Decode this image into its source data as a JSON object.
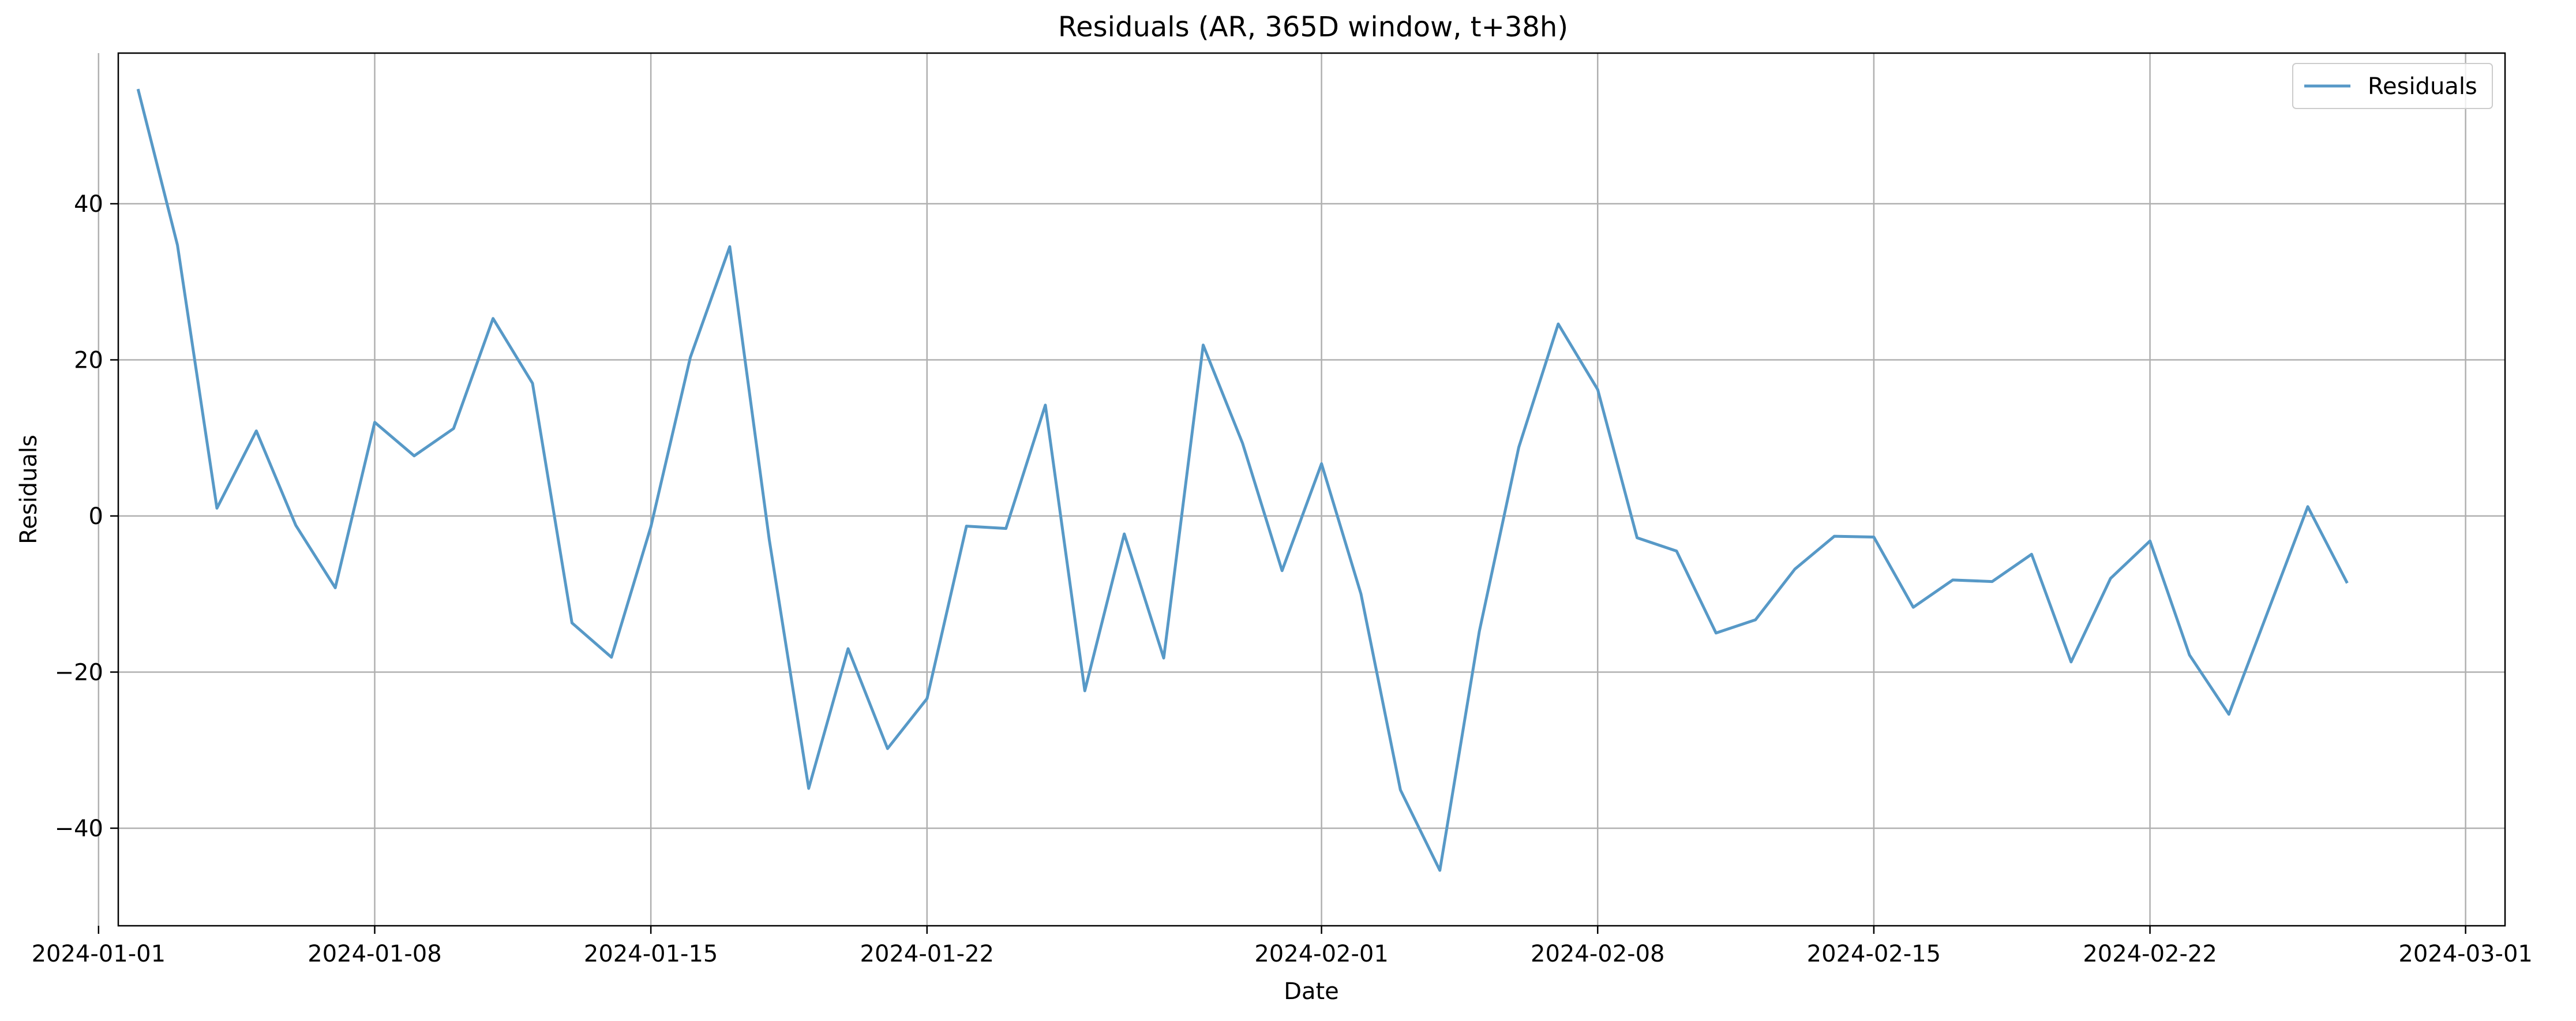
{
  "chart_data": {
    "type": "line",
    "title": "Residuals (AR, 365D window, t+38h)",
    "xlabel": "Date",
    "ylabel": "Residuals",
    "xlim": [
      "2024-01-01",
      "2024-03-01"
    ],
    "ylim": [
      -50,
      60
    ],
    "x_ticks": [
      "2024-01-01",
      "2024-01-08",
      "2024-01-15",
      "2024-01-22",
      "2024-02-01",
      "2024-02-08",
      "2024-02-15",
      "2024-02-22",
      "2024-03-01"
    ],
    "y_ticks": [
      -40,
      -20,
      0,
      20,
      40
    ],
    "grid": true,
    "legend_position": "top-right",
    "colors": {
      "series": "#5799c7",
      "grid": "#b0b0b0",
      "axes": "#000000"
    },
    "series": [
      {
        "name": "Residuals",
        "x": [
          "2024-01-02",
          "2024-01-03",
          "2024-01-04",
          "2024-01-05",
          "2024-01-06",
          "2024-01-07",
          "2024-01-08",
          "2024-01-09",
          "2024-01-10",
          "2024-01-11",
          "2024-01-12",
          "2024-01-13",
          "2024-01-14",
          "2024-01-15",
          "2024-01-16",
          "2024-01-17",
          "2024-01-18",
          "2024-01-19",
          "2024-01-20",
          "2024-01-21",
          "2024-01-22",
          "2024-01-23",
          "2024-01-24",
          "2024-01-25",
          "2024-01-26",
          "2024-01-27",
          "2024-01-28",
          "2024-01-29",
          "2024-01-30",
          "2024-01-31",
          "2024-02-01",
          "2024-02-02",
          "2024-02-03",
          "2024-02-04",
          "2024-02-05",
          "2024-02-06",
          "2024-02-07",
          "2024-02-08",
          "2024-02-09",
          "2024-02-10",
          "2024-02-11",
          "2024-02-12",
          "2024-02-13",
          "2024-02-14",
          "2024-02-15",
          "2024-02-16",
          "2024-02-17",
          "2024-02-18",
          "2024-02-19",
          "2024-02-20",
          "2024-02-21",
          "2024-02-22",
          "2024-02-23",
          "2024-02-24",
          "2024-02-25",
          "2024-02-26",
          "2024-02-27"
        ],
        "values": [
          54.7,
          34.7,
          1.0,
          10.9,
          -1.2,
          -9.2,
          12.0,
          7.7,
          11.2,
          25.3,
          17.0,
          -13.7,
          -18.1,
          -1.4,
          20.3,
          34.5,
          -3.0,
          -34.9,
          -17.0,
          -29.8,
          -23.4,
          -1.3,
          -1.6,
          14.2,
          -22.4,
          -2.3,
          -18.2,
          21.9,
          9.3,
          -7.0,
          6.7,
          -10.0,
          -35.1,
          -45.4,
          -14.8,
          8.8,
          24.6,
          16.2,
          -2.8,
          -4.5,
          -15.0,
          -13.3,
          -6.8,
          -2.6,
          -2.7,
          -11.7,
          -8.2,
          -8.4,
          -4.9,
          -18.7,
          -8.0,
          -3.2,
          -17.8,
          -25.4,
          -12.1,
          1.2,
          -8.6
        ]
      }
    ]
  }
}
